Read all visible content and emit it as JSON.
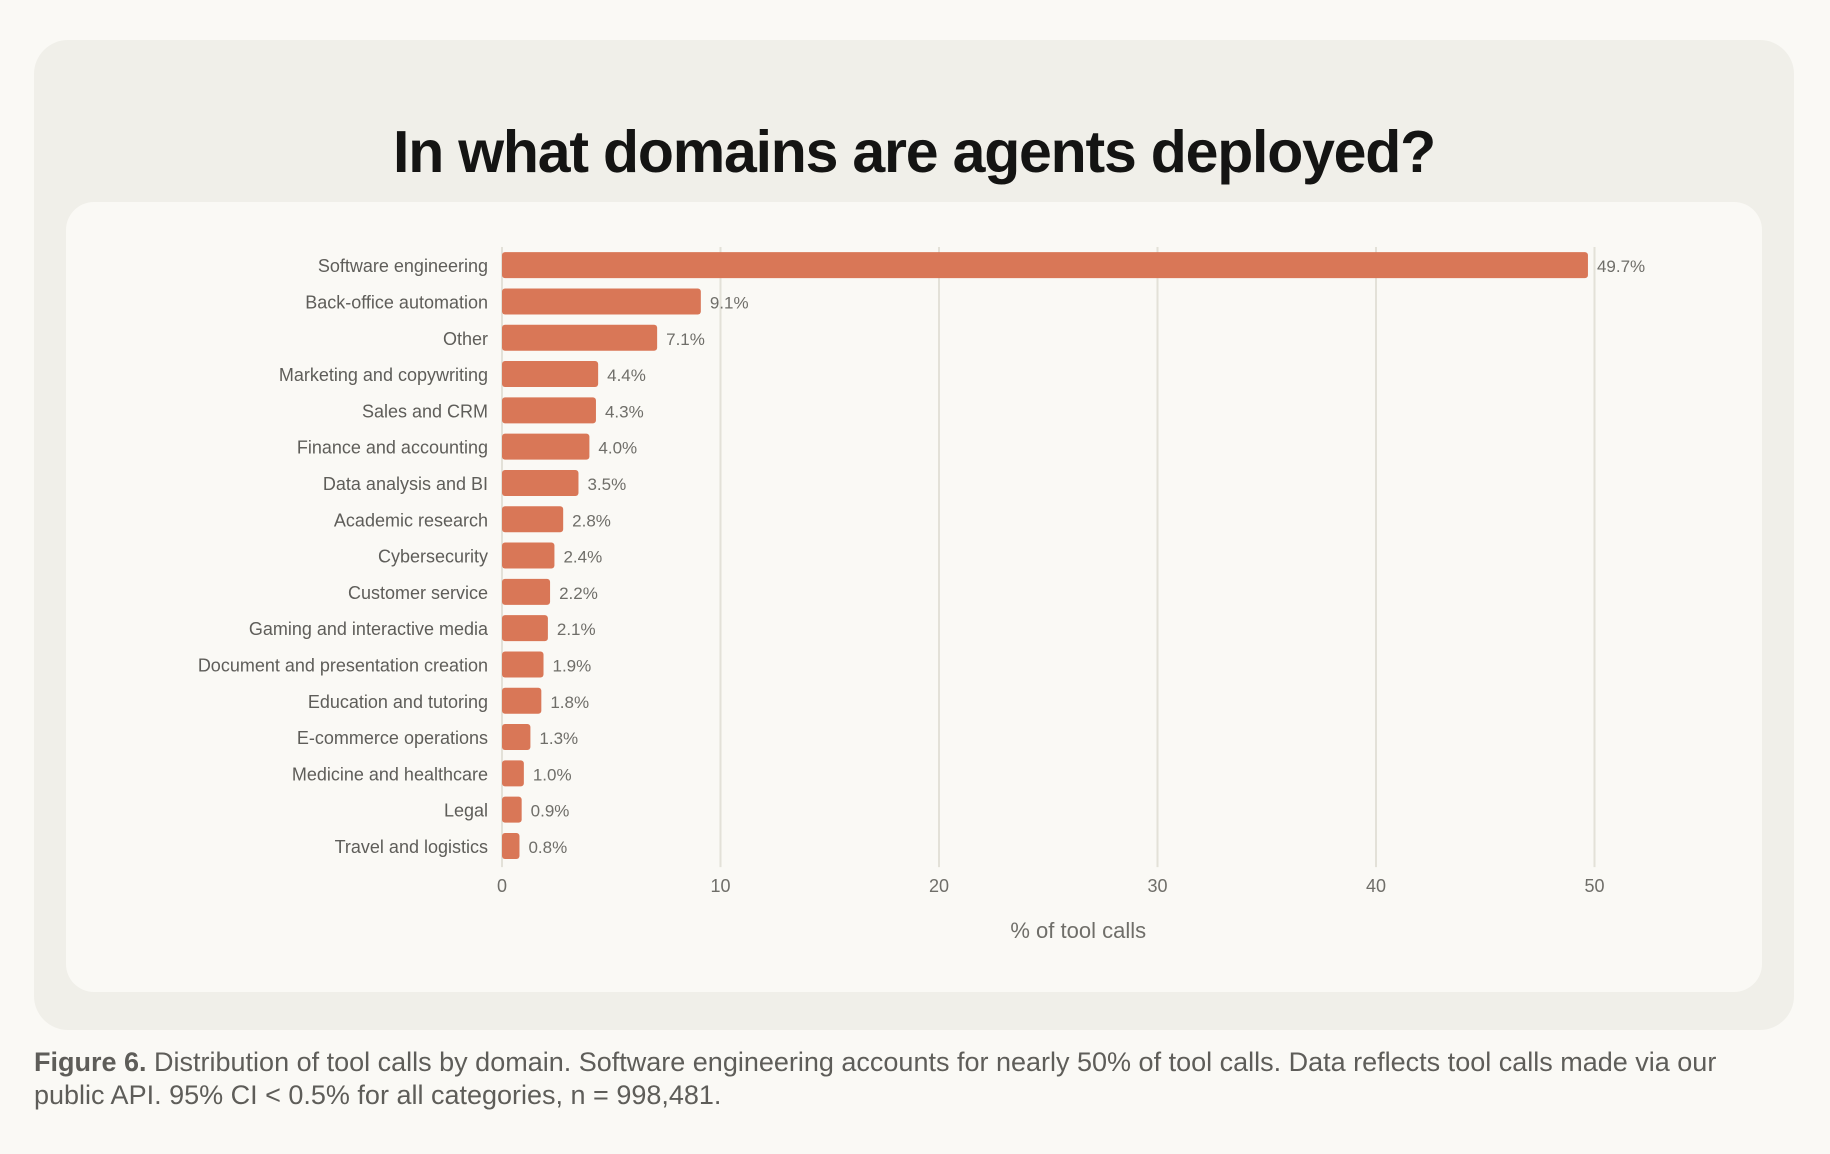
{
  "title": "In what domains are agents deployed?",
  "caption": {
    "label": "Figure 6.",
    "text": " Distribution of tool calls by domain. Software engineering accounts for nearly 50% of tool calls. Data reflects tool calls made via our public API. 95% CI < 0.5% for all categories, n = 998,481."
  },
  "colors": {
    "bar": "#d97757",
    "grid": "#e3e1d8",
    "label": "#5e5d59",
    "value": "#6f6e69"
  },
  "chart_data": {
    "type": "bar",
    "orientation": "horizontal",
    "categories": [
      "Software engineering",
      "Back-office automation",
      "Other",
      "Marketing and copywriting",
      "Sales and CRM",
      "Finance and accounting",
      "Data analysis and BI",
      "Academic research",
      "Cybersecurity",
      "Customer service",
      "Gaming and interactive media",
      "Document and presentation creation",
      "Education and tutoring",
      "E-commerce operations",
      "Medicine and healthcare",
      "Legal",
      "Travel and logistics"
    ],
    "values": [
      49.7,
      9.1,
      7.1,
      4.4,
      4.3,
      4.0,
      3.5,
      2.8,
      2.4,
      2.2,
      2.1,
      1.9,
      1.8,
      1.3,
      1.0,
      0.9,
      0.8
    ],
    "value_labels": [
      "49.7%",
      "9.1%",
      "7.1%",
      "4.4%",
      "4.3%",
      "4.0%",
      "3.5%",
      "2.8%",
      "2.4%",
      "2.2%",
      "2.1%",
      "1.9%",
      "1.8%",
      "1.3%",
      "1.0%",
      "0.9%",
      "0.8%"
    ],
    "xlabel": "% of tool calls",
    "ylabel": "",
    "xlim": [
      0,
      50
    ],
    "xticks": [
      0,
      10,
      20,
      30,
      40,
      50
    ],
    "grid": "vertical"
  }
}
